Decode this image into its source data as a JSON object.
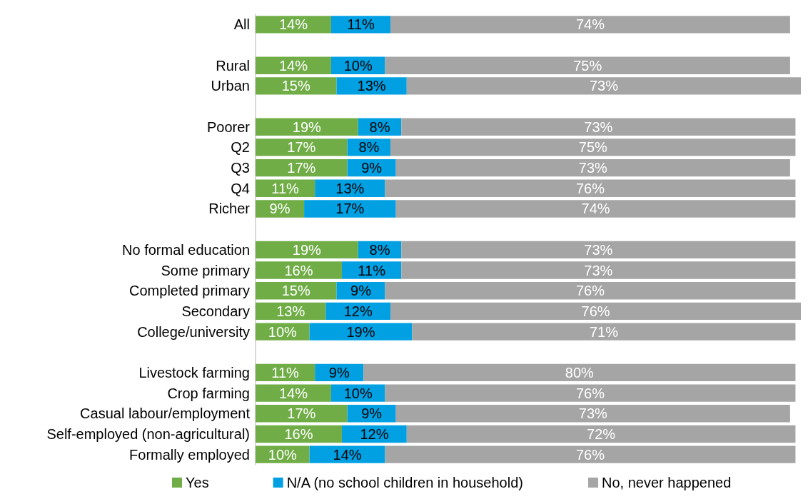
{
  "chart_data": {
    "type": "bar",
    "orientation": "horizontal",
    "stacked": true,
    "xlim": [
      0,
      101
    ],
    "tick_labels": "y",
    "legend": "bottom",
    "categories": [
      "All",
      null,
      "Rural",
      "Urban",
      null,
      "Poorer",
      "Q2",
      "Q3",
      "Q4",
      "Richer",
      null,
      "No formal education",
      "Some primary",
      "Completed primary",
      "Secondary",
      "College/university",
      null,
      "Livestock farming",
      "Crop farming",
      "Casual labour/employment",
      "Self-employed (non-agricultural)",
      "Formally employed"
    ],
    "series": [
      {
        "name": "Yes",
        "color": "#70ad47",
        "values": [
          14,
          null,
          14,
          15,
          null,
          19,
          17,
          17,
          11,
          9,
          null,
          19,
          16,
          15,
          13,
          10,
          null,
          11,
          14,
          17,
          16,
          10
        ],
        "value_labels": [
          "14%",
          null,
          "14%",
          "15%",
          null,
          "19%",
          "17%",
          "17%",
          "11%",
          "9%",
          null,
          "19%",
          "16%",
          "15%",
          "13%",
          "10%",
          null,
          "11%",
          "14%",
          "17%",
          "16%",
          "10%"
        ]
      },
      {
        "name": "N/A (no school children in household)",
        "color": "#00a0e3",
        "values": [
          11,
          null,
          10,
          13,
          null,
          8,
          8,
          9,
          13,
          17,
          null,
          8,
          11,
          9,
          12,
          19,
          null,
          9,
          10,
          9,
          12,
          14
        ],
        "value_labels": [
          "11%",
          null,
          "10%",
          "13%",
          null,
          "8%",
          "8%",
          "9%",
          "13%",
          "17%",
          null,
          "8%",
          "11%",
          "9%",
          "12%",
          "19%",
          null,
          "9%",
          "10%",
          "9%",
          "12%",
          "14%"
        ]
      },
      {
        "name": "No, never happened",
        "color": "#a5a5a5",
        "values": [
          74,
          null,
          75,
          73,
          null,
          73,
          75,
          73,
          76,
          74,
          null,
          73,
          73,
          76,
          76,
          71,
          null,
          80,
          76,
          73,
          72,
          76
        ],
        "value_labels": [
          "74%",
          null,
          "75%",
          "73%",
          null,
          "73%",
          "75%",
          "73%",
          "76%",
          "74%",
          null,
          "73%",
          "73%",
          "76%",
          "76%",
          "71%",
          null,
          "80%",
          "76%",
          "73%",
          "72%",
          "76%"
        ]
      }
    ]
  }
}
